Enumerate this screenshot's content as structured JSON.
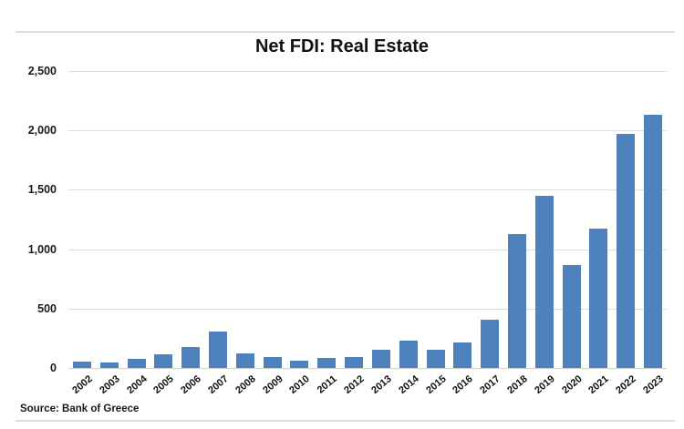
{
  "chart_data": {
    "type": "bar",
    "title": "Net FDI: Real Estate",
    "xlabel": "",
    "ylabel": "",
    "categories": [
      "2002",
      "2003",
      "2004",
      "2005",
      "2006",
      "2007",
      "2008",
      "2009",
      "2010",
      "2011",
      "2012",
      "2013",
      "2014",
      "2015",
      "2016",
      "2017",
      "2018",
      "2019",
      "2020",
      "2021",
      "2022",
      "2023"
    ],
    "values": [
      55,
      45,
      80,
      115,
      180,
      305,
      125,
      90,
      60,
      85,
      95,
      150,
      230,
      150,
      215,
      410,
      1125,
      1450,
      870,
      1170,
      1970,
      2130
    ],
    "ylim": [
      0,
      2500
    ],
    "ytick_interval": 500,
    "yticklabels": [
      "0",
      "500",
      "1,000",
      "1,500",
      "2,000",
      "2,500"
    ],
    "grid": true,
    "legend": false,
    "bar_color": "#4f81bd",
    "gridline_color": "#dcdcdc",
    "axisline_color": "#d0d0d0",
    "source": "Source: Bank of Greece"
  }
}
